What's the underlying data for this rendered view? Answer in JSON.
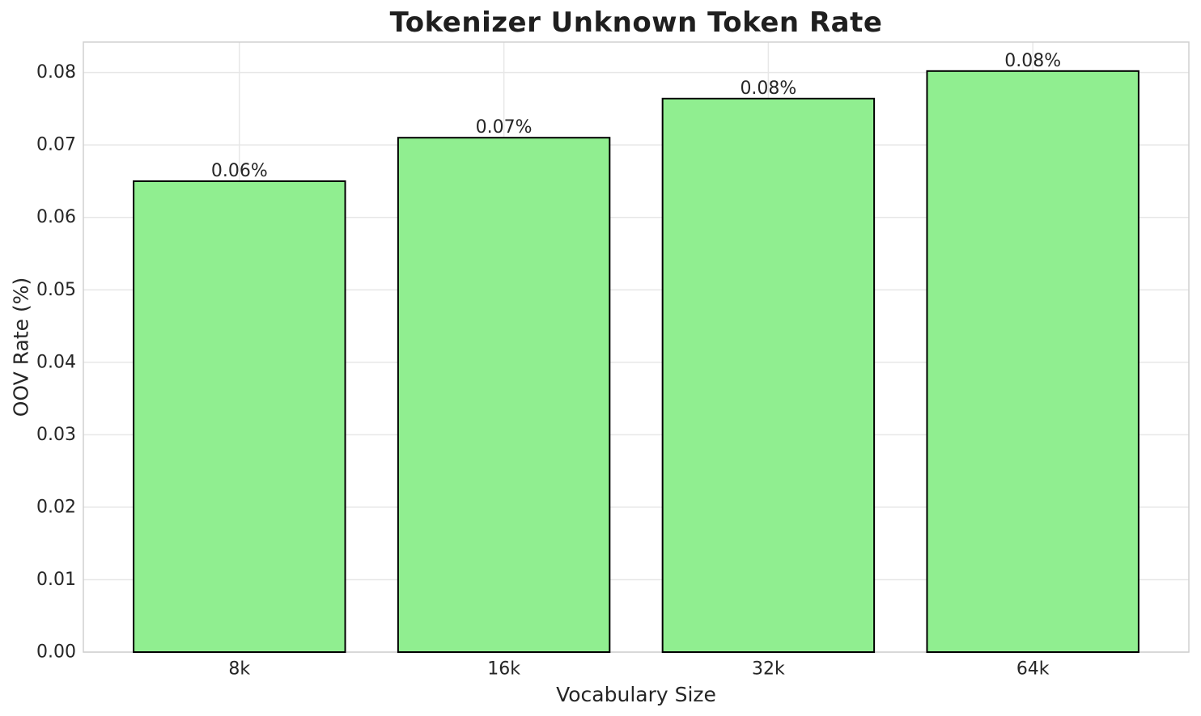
{
  "chart_data": {
    "type": "bar",
    "title": "Tokenizer Unknown Token Rate",
    "xlabel": "Vocabulary Size",
    "ylabel": "OOV Rate (%)",
    "categories": [
      "8k",
      "16k",
      "32k",
      "64k"
    ],
    "values": [
      0.065,
      0.071,
      0.0764,
      0.0802
    ],
    "bar_labels": [
      "0.06%",
      "0.07%",
      "0.08%",
      "0.08%"
    ],
    "y_ticks": [
      0.0,
      0.01,
      0.02,
      0.03,
      0.04,
      0.05,
      0.06,
      0.07,
      0.08
    ],
    "y_tick_labels": [
      "0.00",
      "0.01",
      "0.02",
      "0.03",
      "0.04",
      "0.05",
      "0.06",
      "0.07",
      "0.08"
    ],
    "ylim": [
      0,
      0.0842
    ],
    "xlim": [
      -0.59,
      3.59
    ],
    "bar_width": 0.8,
    "grid": true,
    "legend": "none",
    "colors": {
      "bar_fill": "#90EE90",
      "bar_edge": "#000000",
      "grid": "#E7E7E7",
      "spine": "#D0D0D0",
      "text": "#262626",
      "title": "#1F1F1F",
      "background": "#FFFFFF"
    }
  }
}
